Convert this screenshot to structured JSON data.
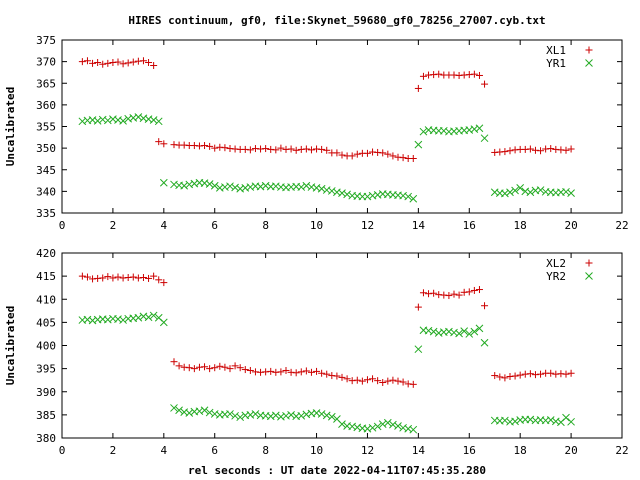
{
  "title": "HIRES continuum, gf0, file:Skynet_59680_gf0_78256_27007.cyb.txt",
  "xlabel": "rel seconds : UT date 2022-04-11T07:45:35.280",
  "colors": {
    "red": "#cc0000",
    "green": "#22aa22"
  },
  "chart_data": [
    {
      "type": "scatter",
      "ylabel": "Uncalibrated",
      "xlim": [
        0,
        22
      ],
      "ylim": [
        335,
        375
      ],
      "xticks": [
        0,
        2,
        4,
        6,
        8,
        10,
        12,
        14,
        16,
        18,
        20,
        22
      ],
      "yticks": [
        335,
        340,
        345,
        350,
        355,
        360,
        365,
        370,
        375
      ],
      "legend_position": "top-right",
      "series": [
        {
          "name": "XL1",
          "marker": "plus",
          "color": "#cc0000",
          "x": [
            0.8,
            1.0,
            1.2,
            1.4,
            1.6,
            1.8,
            2.0,
            2.2,
            2.4,
            2.6,
            2.8,
            3.0,
            3.2,
            3.4,
            3.6,
            3.8,
            4.0,
            4.4,
            4.6,
            4.8,
            5.0,
            5.2,
            5.4,
            5.6,
            5.8,
            6.0,
            6.2,
            6.4,
            6.6,
            6.8,
            7.0,
            7.2,
            7.4,
            7.6,
            7.8,
            8.0,
            8.2,
            8.4,
            8.6,
            8.8,
            9.0,
            9.2,
            9.4,
            9.6,
            9.8,
            10.0,
            10.2,
            10.4,
            10.6,
            10.8,
            11.0,
            11.2,
            11.4,
            11.6,
            11.8,
            12.0,
            12.2,
            12.4,
            12.6,
            12.8,
            13.0,
            13.2,
            13.4,
            13.6,
            13.8,
            14.0,
            14.2,
            14.4,
            14.6,
            14.8,
            15.0,
            15.2,
            15.4,
            15.6,
            15.8,
            16.0,
            16.2,
            16.4,
            16.6,
            17.0,
            17.2,
            17.4,
            17.6,
            17.8,
            18.0,
            18.2,
            18.4,
            18.6,
            18.8,
            19.0,
            19.2,
            19.4,
            19.6,
            19.8,
            20.0
          ],
          "y": [
            370.0,
            370.2,
            369.6,
            369.8,
            369.4,
            369.6,
            369.8,
            369.9,
            369.5,
            369.7,
            369.9,
            370.1,
            370.2,
            369.8,
            369.1,
            351.5,
            351.0,
            350.8,
            350.7,
            350.7,
            350.6,
            350.6,
            350.5,
            350.6,
            350.4,
            350.0,
            350.2,
            350.1,
            349.9,
            349.8,
            349.7,
            349.7,
            349.6,
            349.9,
            349.8,
            349.9,
            349.7,
            349.6,
            350.0,
            349.7,
            349.8,
            349.5,
            349.7,
            349.8,
            349.6,
            349.8,
            349.7,
            349.5,
            348.9,
            348.9,
            348.4,
            348.2,
            348.2,
            348.6,
            348.8,
            348.8,
            349.1,
            349.0,
            348.9,
            348.6,
            348.2,
            347.9,
            347.8,
            347.6,
            347.6,
            363.8,
            366.6,
            366.9,
            367.0,
            367.1,
            366.9,
            366.9,
            366.9,
            366.8,
            366.9,
            367.0,
            367.1,
            366.8,
            364.8,
            349.0,
            349.1,
            349.2,
            349.4,
            349.6,
            349.7,
            349.7,
            349.8,
            349.5,
            349.4,
            349.8,
            349.9,
            349.7,
            349.6,
            349.5,
            349.8
          ],
          "x2": [
            0.8,
            1.0,
            1.2,
            1.4,
            1.6,
            1.8,
            2.0,
            2.2,
            2.4,
            2.6,
            2.8,
            3.0,
            3.2,
            3.4,
            3.6,
            3.8,
            4.0,
            4.4,
            4.6,
            4.8,
            5.0,
            5.2,
            5.4,
            5.6,
            5.8,
            6.0,
            6.2,
            6.4,
            6.6,
            6.8,
            7.0,
            7.2,
            7.4,
            7.6,
            7.8,
            8.0,
            8.2,
            8.4,
            8.6,
            8.8,
            9.0,
            9.2,
            9.4,
            9.6,
            9.8,
            10.0,
            10.2,
            10.4,
            10.6,
            10.8,
            11.0,
            11.2,
            11.4,
            11.6,
            11.8,
            12.0,
            12.2,
            12.4,
            12.6,
            12.8,
            13.0,
            13.2,
            13.4,
            13.6,
            13.8,
            14.0,
            14.2,
            14.4,
            14.6,
            14.8,
            15.0,
            15.2,
            15.4,
            15.6,
            15.8,
            16.0,
            16.2,
            16.4,
            16.6,
            17.0,
            17.2,
            17.4,
            17.6,
            17.8,
            18.0,
            18.2,
            18.4,
            18.6,
            18.8,
            19.0,
            19.2,
            19.4,
            19.6,
            19.8,
            20.0
          ]
        },
        {
          "name": "YR1",
          "marker": "cross",
          "color": "#22aa22",
          "x": [
            0.8,
            1.0,
            1.2,
            1.4,
            1.6,
            1.8,
            2.0,
            2.2,
            2.4,
            2.6,
            2.8,
            3.0,
            3.2,
            3.4,
            3.6,
            3.8,
            4.0,
            4.4,
            4.6,
            4.8,
            5.0,
            5.2,
            5.4,
            5.6,
            5.8,
            6.0,
            6.2,
            6.4,
            6.6,
            6.8,
            7.0,
            7.2,
            7.4,
            7.6,
            7.8,
            8.0,
            8.2,
            8.4,
            8.6,
            8.8,
            9.0,
            9.2,
            9.4,
            9.6,
            9.8,
            10.0,
            10.2,
            10.4,
            10.6,
            10.8,
            11.0,
            11.2,
            11.4,
            11.6,
            11.8,
            12.0,
            12.2,
            12.4,
            12.6,
            12.8,
            13.0,
            13.2,
            13.4,
            13.6,
            13.8,
            14.0,
            14.2,
            14.4,
            14.6,
            14.8,
            15.0,
            15.2,
            15.4,
            15.6,
            15.8,
            16.0,
            16.2,
            16.4,
            16.6,
            17.0,
            17.2,
            17.4,
            17.6,
            17.8,
            18.0,
            18.2,
            18.4,
            18.6,
            18.8,
            19.0,
            19.2,
            19.4,
            19.6,
            19.8,
            20.0
          ],
          "y": [
            356.2,
            356.4,
            356.5,
            356.3,
            356.6,
            356.4,
            356.7,
            356.5,
            356.3,
            356.8,
            357.0,
            357.2,
            356.9,
            356.7,
            356.5,
            356.2,
            342.0,
            341.6,
            341.4,
            341.3,
            341.6,
            341.8,
            342.0,
            341.9,
            341.7,
            341.3,
            340.8,
            341.0,
            341.2,
            340.9,
            340.6,
            340.8,
            341.0,
            341.2,
            341.1,
            341.3,
            341.1,
            341.2,
            341.0,
            340.9,
            341.0,
            341.1,
            341.0,
            341.3,
            341.0,
            340.8,
            340.6,
            340.3,
            340.1,
            339.8,
            339.6,
            339.3,
            339.0,
            338.9,
            338.8,
            338.8,
            339.0,
            339.2,
            339.4,
            339.3,
            339.2,
            339.1,
            339.0,
            338.8,
            338.3,
            350.8,
            353.8,
            354.2,
            354.1,
            354.0,
            354.0,
            353.8,
            353.9,
            354.0,
            354.1,
            354.2,
            354.4,
            354.6,
            352.3,
            339.8,
            339.6,
            339.5,
            339.8,
            340.2,
            340.8,
            340.0,
            339.8,
            340.2,
            340.3,
            339.9,
            339.8,
            339.7,
            339.8,
            339.9,
            339.6
          ]
        }
      ]
    },
    {
      "type": "scatter",
      "ylabel": "Uncalibrated",
      "xlim": [
        0,
        22
      ],
      "ylim": [
        380,
        420
      ],
      "xticks": [
        0,
        2,
        4,
        6,
        8,
        10,
        12,
        14,
        16,
        18,
        20,
        22
      ],
      "yticks": [
        380,
        385,
        390,
        395,
        400,
        405,
        410,
        415,
        420
      ],
      "legend_position": "top-right",
      "series": [
        {
          "name": "XL2",
          "marker": "plus",
          "color": "#cc0000",
          "x": [
            0.8,
            1.0,
            1.2,
            1.4,
            1.6,
            1.8,
            2.0,
            2.2,
            2.4,
            2.6,
            2.8,
            3.0,
            3.2,
            3.4,
            3.6,
            3.8,
            4.0,
            4.4,
            4.6,
            4.8,
            5.0,
            5.2,
            5.4,
            5.6,
            5.8,
            6.0,
            6.2,
            6.4,
            6.6,
            6.8,
            7.0,
            7.2,
            7.4,
            7.6,
            7.8,
            8.0,
            8.2,
            8.4,
            8.6,
            8.8,
            9.0,
            9.2,
            9.4,
            9.6,
            9.8,
            10.0,
            10.2,
            10.4,
            10.6,
            10.8,
            11.0,
            11.2,
            11.4,
            11.6,
            11.8,
            12.0,
            12.2,
            12.4,
            12.6,
            12.8,
            13.0,
            13.2,
            13.4,
            13.6,
            13.8,
            14.0,
            14.2,
            14.4,
            14.6,
            14.8,
            15.0,
            15.2,
            15.4,
            15.6,
            15.8,
            16.0,
            16.2,
            16.4,
            16.6,
            17.0,
            17.2,
            17.4,
            17.6,
            17.8,
            18.0,
            18.2,
            18.4,
            18.6,
            18.8,
            19.0,
            19.2,
            19.4,
            19.6,
            19.8,
            20.0
          ],
          "y": [
            415.0,
            414.8,
            414.4,
            414.5,
            414.6,
            414.9,
            414.6,
            414.8,
            414.6,
            414.7,
            414.8,
            414.6,
            414.7,
            414.5,
            415.0,
            414.2,
            413.6,
            396.5,
            395.6,
            395.3,
            395.2,
            395.0,
            395.3,
            395.4,
            395.0,
            395.2,
            395.5,
            395.3,
            395.0,
            395.6,
            395.2,
            394.8,
            394.6,
            394.3,
            394.2,
            394.3,
            394.4,
            394.2,
            394.3,
            394.6,
            394.2,
            394.1,
            394.3,
            394.5,
            394.2,
            394.4,
            394.0,
            393.8,
            393.5,
            393.4,
            393.1,
            392.8,
            392.4,
            392.5,
            392.3,
            392.6,
            392.8,
            392.4,
            392.0,
            392.3,
            392.5,
            392.3,
            392.1,
            391.7,
            391.6,
            408.3,
            411.4,
            411.2,
            411.3,
            411.0,
            410.9,
            410.8,
            411.1,
            410.9,
            411.5,
            411.6,
            411.9,
            412.1,
            408.6,
            393.5,
            393.2,
            393.0,
            393.3,
            393.4,
            393.6,
            393.8,
            393.9,
            393.7,
            393.8,
            394.0,
            394.0,
            393.8,
            393.9,
            393.8,
            394.0
          ]
        },
        {
          "name": "YR2",
          "marker": "cross",
          "color": "#22aa22",
          "x": [
            0.8,
            1.0,
            1.2,
            1.4,
            1.6,
            1.8,
            2.0,
            2.2,
            2.4,
            2.6,
            2.8,
            3.0,
            3.2,
            3.4,
            3.6,
            3.8,
            4.0,
            4.4,
            4.6,
            4.8,
            5.0,
            5.2,
            5.4,
            5.6,
            5.8,
            6.0,
            6.2,
            6.4,
            6.6,
            6.8,
            7.0,
            7.2,
            7.4,
            7.6,
            7.8,
            8.0,
            8.2,
            8.4,
            8.6,
            8.8,
            9.0,
            9.2,
            9.4,
            9.6,
            9.8,
            10.0,
            10.2,
            10.4,
            10.6,
            10.8,
            11.0,
            11.2,
            11.4,
            11.6,
            11.8,
            12.0,
            12.2,
            12.4,
            12.6,
            12.8,
            13.0,
            13.2,
            13.4,
            13.6,
            13.8,
            14.0,
            14.2,
            14.4,
            14.6,
            14.8,
            15.0,
            15.2,
            15.4,
            15.6,
            15.8,
            16.0,
            16.2,
            16.4,
            16.6,
            17.0,
            17.2,
            17.4,
            17.6,
            17.8,
            18.0,
            18.2,
            18.4,
            18.6,
            18.8,
            19.0,
            19.2,
            19.4,
            19.6,
            19.8,
            20.0
          ],
          "y": [
            405.5,
            405.6,
            405.4,
            405.6,
            405.7,
            405.6,
            405.8,
            405.7,
            405.5,
            405.8,
            405.9,
            406.0,
            406.3,
            406.1,
            406.5,
            406.0,
            405.0,
            386.5,
            386.0,
            385.6,
            385.4,
            385.7,
            385.8,
            386.0,
            385.5,
            385.2,
            385.0,
            385.1,
            385.2,
            384.8,
            384.5,
            384.9,
            385.0,
            385.2,
            384.9,
            384.8,
            384.7,
            384.9,
            384.6,
            384.8,
            385.0,
            384.7,
            384.8,
            385.1,
            385.3,
            385.4,
            385.2,
            384.9,
            384.6,
            384.1,
            383.0,
            382.6,
            382.5,
            382.3,
            382.1,
            382.0,
            382.2,
            382.5,
            383.0,
            383.3,
            382.9,
            382.6,
            382.2,
            382.0,
            381.8,
            399.2,
            403.3,
            403.2,
            403.0,
            402.7,
            402.9,
            403.0,
            402.8,
            402.6,
            403.1,
            402.5,
            403.0,
            403.7,
            400.6,
            383.8,
            383.7,
            383.8,
            383.5,
            383.6,
            383.9,
            384.0,
            384.0,
            383.8,
            383.9,
            383.8,
            383.9,
            383.6,
            383.4,
            384.4,
            383.5
          ]
        }
      ]
    }
  ]
}
